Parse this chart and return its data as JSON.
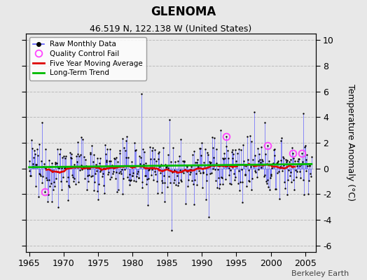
{
  "title": "GLENOMA",
  "subtitle": "46.519 N, 122.138 W (United States)",
  "ylabel": "Temperature Anomaly (°C)",
  "xlabel_years": [
    1965,
    1970,
    1975,
    1980,
    1985,
    1990,
    1995,
    2000,
    2005
  ],
  "ylim": [
    -6.5,
    10.5
  ],
  "yticks": [
    -6,
    -4,
    -2,
    0,
    2,
    4,
    6,
    8,
    10
  ],
  "xlim": [
    1964.5,
    2006.5
  ],
  "bg_color": "#e8e8e8",
  "plot_bg_color": "#e8e8e8",
  "grid_color": "#bbbbbb",
  "raw_line_color": "#5555ff",
  "raw_dot_color": "#000000",
  "qc_fail_color": "#ff44ff",
  "moving_avg_color": "#dd0000",
  "trend_color": "#00bb00",
  "watermark": "Berkeley Earth",
  "seed": 12345,
  "n_months": 492,
  "start_year": 1965.0,
  "title_fontsize": 12,
  "subtitle_fontsize": 9,
  "tick_fontsize": 9,
  "ylabel_fontsize": 9
}
